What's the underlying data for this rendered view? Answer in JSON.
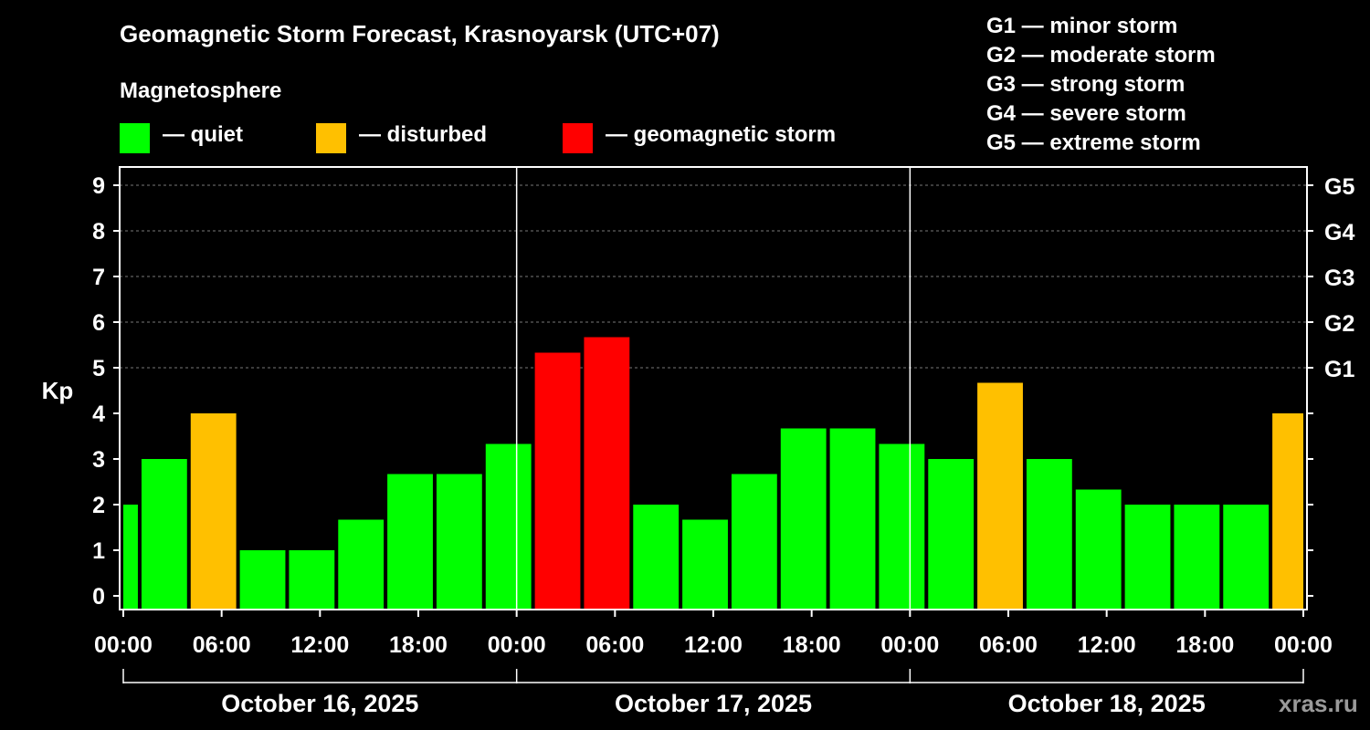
{
  "chart_data": {
    "type": "bar",
    "title": "Geomagnetic Storm Forecast, Krasnoyarsk (UTC+07)",
    "subtitle": "Magnetosphere",
    "ylabel": "Kp",
    "ylim": [
      -0.3,
      9.4
    ],
    "yticks": [
      "0",
      "1",
      "2",
      "3",
      "4",
      "5",
      "6",
      "7",
      "8",
      "9"
    ],
    "g_ticks": [
      {
        "kp": 5,
        "label": "G1"
      },
      {
        "kp": 6,
        "label": "G2"
      },
      {
        "kp": 7,
        "label": "G3"
      },
      {
        "kp": 8,
        "label": "G4"
      },
      {
        "kp": 9,
        "label": "G5"
      }
    ],
    "grid": "horizontal dashed at Kp 5-9",
    "x_tick_labels": [
      "00:00",
      "06:00",
      "12:00",
      "18:00",
      "00:00",
      "06:00",
      "12:00",
      "18:00",
      "00:00",
      "06:00",
      "12:00",
      "18:00",
      "00:00"
    ],
    "x_range_hours": [
      0,
      72
    ],
    "dates": [
      "October 16, 2025",
      "October 17, 2025",
      "October 18, 2025"
    ],
    "bar_start_hours": [
      -2,
      1,
      4,
      7,
      10,
      13,
      16,
      19,
      22,
      25,
      28,
      31,
      34,
      37,
      40,
      43,
      46,
      49,
      52,
      55,
      58,
      61,
      64,
      67,
      70
    ],
    "bar_duration_hours": 3,
    "values": [
      2.0,
      3.0,
      4.0,
      1.0,
      1.0,
      1.67,
      2.67,
      2.67,
      3.33,
      5.33,
      5.67,
      2.0,
      1.67,
      2.67,
      3.67,
      3.67,
      3.33,
      3.0,
      4.67,
      3.0,
      2.33,
      2.0,
      2.0,
      2.0,
      4.0
    ],
    "categories": [
      "quiet",
      "quiet",
      "disturbed",
      "quiet",
      "quiet",
      "quiet",
      "quiet",
      "quiet",
      "quiet",
      "storm",
      "storm",
      "quiet",
      "quiet",
      "quiet",
      "quiet",
      "quiet",
      "quiet",
      "quiet",
      "disturbed",
      "quiet",
      "quiet",
      "quiet",
      "quiet",
      "quiet",
      "disturbed"
    ],
    "colors": {
      "quiet": "#00ff00",
      "disturbed": "#ffc000",
      "storm": "#ff0000"
    }
  },
  "legend": {
    "quiet": {
      "label": "— quiet",
      "color": "#00ff00"
    },
    "disturbed": {
      "label": "— disturbed",
      "color": "#ffc000"
    },
    "storm": {
      "label": "— geomagnetic storm",
      "color": "#ff0000"
    }
  },
  "g_scale": [
    "G1 — minor storm",
    "G2 — moderate storm",
    "G3 — strong storm",
    "G4 — severe storm",
    "G5 — extreme storm"
  ],
  "brand": "xras.ru"
}
